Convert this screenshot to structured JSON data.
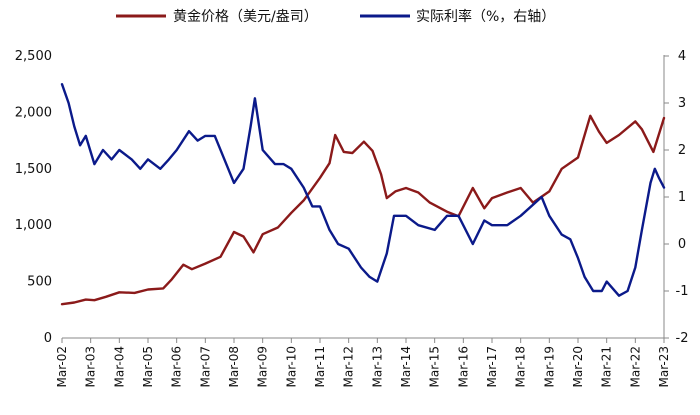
{
  "chart_data": {
    "type": "line",
    "title": "",
    "legend_position": "top",
    "grid": false,
    "left_axis": {
      "ylim": [
        0,
        2500
      ],
      "ticks": [
        0,
        500,
        1000,
        1500,
        2000,
        2500
      ],
      "tick_labels": [
        "0",
        "500",
        "1,000",
        "1,500",
        "2,000",
        "2,500"
      ],
      "color": "#111111"
    },
    "right_axis": {
      "ylim": [
        -2,
        4
      ],
      "ticks": [
        -2,
        -1,
        0,
        1,
        2,
        3,
        4
      ],
      "tick_labels": [
        "-2",
        "-1",
        "0",
        "1",
        "2",
        "3",
        "4"
      ],
      "tick_colors": [
        "#e00000",
        "#e00000",
        "#111111",
        "#111111",
        "#111111",
        "#111111",
        "#111111"
      ]
    },
    "x_axis": {
      "range": [
        2002.17,
        2023.17
      ],
      "labels": [
        "Mar-02",
        "Mar-03",
        "Mar-04",
        "Mar-05",
        "Mar-06",
        "Mar-07",
        "Mar-08",
        "Mar-09",
        "Mar-10",
        "Mar-11",
        "Mar-12",
        "Mar-13",
        "Mar-14",
        "Mar-15",
        "Mar-16",
        "Mar-17",
        "Mar-18",
        "Mar-19",
        "Mar-20",
        "Mar-21",
        "Mar-22",
        "Mar-23"
      ]
    },
    "series": [
      {
        "name": "黄金价格（美元/盎司）",
        "axis": "left",
        "color": "#8b1a1a",
        "points": [
          [
            2002.17,
            300
          ],
          [
            2002.6,
            315
          ],
          [
            2003.0,
            340
          ],
          [
            2003.3,
            335
          ],
          [
            2003.7,
            365
          ],
          [
            2004.17,
            405
          ],
          [
            2004.7,
            400
          ],
          [
            2005.17,
            430
          ],
          [
            2005.7,
            440
          ],
          [
            2006.0,
            520
          ],
          [
            2006.4,
            650
          ],
          [
            2006.7,
            610
          ],
          [
            2007.17,
            660
          ],
          [
            2007.7,
            720
          ],
          [
            2008.17,
            940
          ],
          [
            2008.5,
            900
          ],
          [
            2008.85,
            760
          ],
          [
            2009.17,
            920
          ],
          [
            2009.7,
            980
          ],
          [
            2010.17,
            1110
          ],
          [
            2010.6,
            1220
          ],
          [
            2011.17,
            1420
          ],
          [
            2011.5,
            1550
          ],
          [
            2011.7,
            1800
          ],
          [
            2012.0,
            1650
          ],
          [
            2012.3,
            1640
          ],
          [
            2012.7,
            1740
          ],
          [
            2013.0,
            1660
          ],
          [
            2013.3,
            1450
          ],
          [
            2013.5,
            1240
          ],
          [
            2013.8,
            1300
          ],
          [
            2014.17,
            1330
          ],
          [
            2014.6,
            1290
          ],
          [
            2015.0,
            1200
          ],
          [
            2015.6,
            1120
          ],
          [
            2016.0,
            1080
          ],
          [
            2016.5,
            1330
          ],
          [
            2016.9,
            1150
          ],
          [
            2017.17,
            1240
          ],
          [
            2017.7,
            1290
          ],
          [
            2018.17,
            1330
          ],
          [
            2018.6,
            1200
          ],
          [
            2019.17,
            1300
          ],
          [
            2019.6,
            1500
          ],
          [
            2020.17,
            1600
          ],
          [
            2020.6,
            1970
          ],
          [
            2020.9,
            1830
          ],
          [
            2021.17,
            1730
          ],
          [
            2021.6,
            1800
          ],
          [
            2022.17,
            1920
          ],
          [
            2022.4,
            1850
          ],
          [
            2022.8,
            1650
          ],
          [
            2023.17,
            1950
          ]
        ]
      },
      {
        "name": "实际利率（%，右轴）",
        "axis": "right",
        "color": "#0b1a8a",
        "points": [
          [
            2002.17,
            3.4
          ],
          [
            2002.4,
            3.0
          ],
          [
            2002.6,
            2.5
          ],
          [
            2002.8,
            2.1
          ],
          [
            2003.0,
            2.3
          ],
          [
            2003.3,
            1.7
          ],
          [
            2003.6,
            2.0
          ],
          [
            2003.9,
            1.8
          ],
          [
            2004.17,
            2.0
          ],
          [
            2004.6,
            1.8
          ],
          [
            2004.9,
            1.6
          ],
          [
            2005.17,
            1.8
          ],
          [
            2005.6,
            1.6
          ],
          [
            2005.9,
            1.8
          ],
          [
            2006.17,
            2.0
          ],
          [
            2006.6,
            2.4
          ],
          [
            2006.9,
            2.2
          ],
          [
            2007.17,
            2.3
          ],
          [
            2007.5,
            2.3
          ],
          [
            2007.9,
            1.7
          ],
          [
            2008.17,
            1.3
          ],
          [
            2008.5,
            1.6
          ],
          [
            2008.75,
            2.5
          ],
          [
            2008.9,
            3.1
          ],
          [
            2009.17,
            2.0
          ],
          [
            2009.6,
            1.7
          ],
          [
            2009.9,
            1.7
          ],
          [
            2010.17,
            1.6
          ],
          [
            2010.6,
            1.2
          ],
          [
            2010.9,
            0.8
          ],
          [
            2011.17,
            0.8
          ],
          [
            2011.5,
            0.3
          ],
          [
            2011.8,
            0.0
          ],
          [
            2012.17,
            -0.1
          ],
          [
            2012.6,
            -0.5
          ],
          [
            2012.9,
            -0.7
          ],
          [
            2013.17,
            -0.8
          ],
          [
            2013.5,
            -0.2
          ],
          [
            2013.75,
            0.6
          ],
          [
            2014.17,
            0.6
          ],
          [
            2014.6,
            0.4
          ],
          [
            2015.17,
            0.3
          ],
          [
            2015.6,
            0.6
          ],
          [
            2016.0,
            0.6
          ],
          [
            2016.5,
            0.0
          ],
          [
            2016.9,
            0.5
          ],
          [
            2017.17,
            0.4
          ],
          [
            2017.7,
            0.4
          ],
          [
            2018.17,
            0.6
          ],
          [
            2018.9,
            1.0
          ],
          [
            2019.17,
            0.6
          ],
          [
            2019.6,
            0.2
          ],
          [
            2019.9,
            0.1
          ],
          [
            2020.17,
            -0.3
          ],
          [
            2020.4,
            -0.7
          ],
          [
            2020.7,
            -1.0
          ],
          [
            2021.0,
            -1.0
          ],
          [
            2021.17,
            -0.8
          ],
          [
            2021.6,
            -1.1
          ],
          [
            2021.9,
            -1.0
          ],
          [
            2022.17,
            -0.5
          ],
          [
            2022.4,
            0.3
          ],
          [
            2022.7,
            1.3
          ],
          [
            2022.85,
            1.6
          ],
          [
            2023.0,
            1.4
          ],
          [
            2023.17,
            1.2
          ]
        ]
      }
    ]
  }
}
